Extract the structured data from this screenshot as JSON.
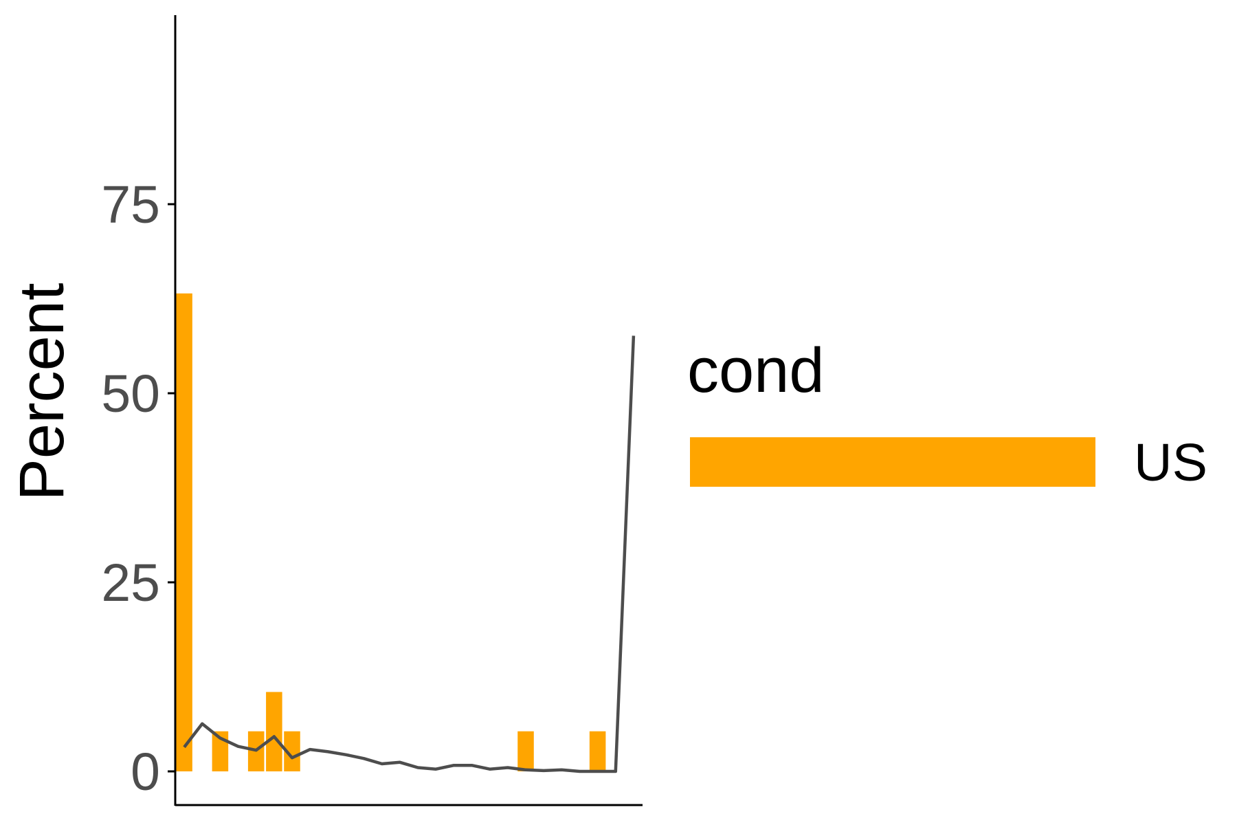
{
  "chart_data": {
    "type": "bar",
    "title": "",
    "xlabel": "",
    "ylabel": "Percent",
    "ylim": [
      0,
      100
    ],
    "yticks": [
      0,
      25,
      50,
      75
    ],
    "x_range": [
      0.5,
      26.5
    ],
    "grid": false,
    "series": [
      {
        "name": "US",
        "kind": "bar",
        "color": "#FFA500",
        "x": [
          1,
          3,
          5,
          6,
          7,
          20,
          24
        ],
        "values": [
          63.2,
          5.3,
          5.3,
          10.5,
          5.3,
          5.3,
          5.3
        ]
      },
      {
        "name": "line",
        "kind": "line",
        "color": "#4d4d4d",
        "x": [
          1,
          2,
          3,
          4,
          5,
          6,
          7,
          8,
          9,
          10,
          11,
          12,
          13,
          14,
          15,
          16,
          17,
          18,
          19,
          20,
          21,
          22,
          23,
          24,
          25,
          26
        ],
        "values": [
          3.2,
          6.3,
          4.4,
          3.3,
          2.8,
          4.6,
          1.8,
          2.9,
          2.6,
          2.2,
          1.7,
          1.0,
          1.2,
          0.5,
          0.3,
          0.8,
          0.8,
          0.3,
          0.5,
          0.2,
          0.1,
          0.2,
          0.0,
          0.0,
          0.0,
          57.6
        ]
      }
    ],
    "legend": {
      "title": "cond",
      "position": "right",
      "entries": [
        {
          "label": "US",
          "color": "#FFA500"
        }
      ]
    }
  }
}
